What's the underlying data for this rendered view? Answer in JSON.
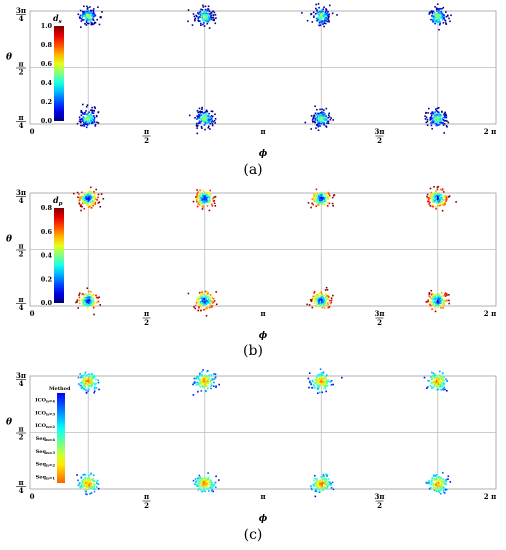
{
  "chart_data": [
    {
      "type": "scatter",
      "panel_label": "(a)",
      "xlabel": "ϕ",
      "ylabel": "θ",
      "x_ticks": [
        {
          "value": 0,
          "label": "0"
        },
        {
          "value": 1.5708,
          "label": "π/2"
        },
        {
          "value": 3.1416,
          "label": "π"
        },
        {
          "value": 4.7124,
          "label": "3π/2"
        },
        {
          "value": 6.2832,
          "label": "2 π"
        }
      ],
      "y_ticks": [
        {
          "value": 0.7854,
          "label": "π/4"
        },
        {
          "value": 1.5708,
          "label": "π/2"
        },
        {
          "value": 2.3562,
          "label": "3π/4"
        }
      ],
      "xlim": [
        0,
        6.2832
      ],
      "ylim": [
        0.7854,
        2.3562
      ],
      "grid": true,
      "colorbar": {
        "title": "d_s",
        "title_base": "d",
        "title_sub": "s",
        "range": [
          0,
          1.0
        ],
        "ticks": [
          "0.0",
          "0.2",
          "0.4",
          "0.6",
          "0.8",
          "1.0"
        ],
        "placement": "top-left inside"
      },
      "clusters": [
        {
          "phi": 0.785,
          "theta": 2.28
        },
        {
          "phi": 2.356,
          "theta": 2.28
        },
        {
          "phi": 3.927,
          "theta": 2.28
        },
        {
          "phi": 5.498,
          "theta": 2.28
        },
        {
          "phi": 0.785,
          "theta": 0.86
        },
        {
          "phi": 2.356,
          "theta": 0.86
        },
        {
          "phi": 3.927,
          "theta": 0.86
        },
        {
          "phi": 5.498,
          "theta": 0.86
        }
      ]
    },
    {
      "type": "scatter",
      "panel_label": "(b)",
      "xlabel": "ϕ",
      "ylabel": "θ",
      "x_ticks": [
        {
          "value": 0,
          "label": "0"
        },
        {
          "value": 1.5708,
          "label": "π/2"
        },
        {
          "value": 3.1416,
          "label": "π"
        },
        {
          "value": 4.7124,
          "label": "3π/2"
        },
        {
          "value": 6.2832,
          "label": "2 π"
        }
      ],
      "y_ticks": [
        {
          "value": 0.7854,
          "label": "π/4"
        },
        {
          "value": 1.5708,
          "label": "π/2"
        },
        {
          "value": 2.3562,
          "label": "3π/4"
        }
      ],
      "xlim": [
        0,
        6.2832
      ],
      "ylim": [
        0.7854,
        2.3562
      ],
      "grid": true,
      "colorbar": {
        "title": "d_p",
        "title_base": "d",
        "title_sub": "p",
        "range": [
          0,
          0.8
        ],
        "ticks": [
          "0.0",
          "0.2",
          "0.4",
          "0.6",
          "0.8"
        ],
        "placement": "top-left inside"
      },
      "clusters": [
        {
          "phi": 0.785,
          "theta": 2.28
        },
        {
          "phi": 2.356,
          "theta": 2.28
        },
        {
          "phi": 3.927,
          "theta": 2.28
        },
        {
          "phi": 5.498,
          "theta": 2.28
        },
        {
          "phi": 0.785,
          "theta": 0.86
        },
        {
          "phi": 2.356,
          "theta": 0.86
        },
        {
          "phi": 3.927,
          "theta": 0.86
        },
        {
          "phi": 5.498,
          "theta": 0.86
        }
      ]
    },
    {
      "type": "scatter",
      "panel_label": "(c)",
      "xlabel": "ϕ",
      "ylabel": "θ",
      "x_ticks": [
        {
          "value": 0,
          "label": "0"
        },
        {
          "value": 1.5708,
          "label": "π/2"
        },
        {
          "value": 3.1416,
          "label": "π"
        },
        {
          "value": 4.7124,
          "label": "3π/2"
        },
        {
          "value": 6.2832,
          "label": "2 π"
        }
      ],
      "y_ticks": [
        {
          "value": 0.7854,
          "label": "π/4"
        },
        {
          "value": 1.5708,
          "label": "π/2"
        },
        {
          "value": 2.3562,
          "label": "3π/4"
        }
      ],
      "xlim": [
        0,
        6.2832
      ],
      "ylim": [
        0.7854,
        2.3562
      ],
      "grid": true,
      "colorbar": {
        "title": "Method",
        "categories": [
          {
            "base": "Seq",
            "sub": "n=1"
          },
          {
            "base": "Seq",
            "sub": "n=2"
          },
          {
            "base": "Seq",
            "sub": "n=3"
          },
          {
            "base": "Seq",
            "sub": "n=4"
          },
          {
            "base": "ICO",
            "sub": "n=2"
          },
          {
            "base": "ICO",
            "sub": "n=3"
          },
          {
            "base": "ICO",
            "sub": "n=4"
          }
        ],
        "placement": "top-left inside"
      },
      "clusters": [
        {
          "phi": 0.785,
          "theta": 2.28
        },
        {
          "phi": 2.356,
          "theta": 2.28
        },
        {
          "phi": 3.927,
          "theta": 2.28
        },
        {
          "phi": 5.498,
          "theta": 2.28
        },
        {
          "phi": 0.785,
          "theta": 0.86
        },
        {
          "phi": 2.356,
          "theta": 0.86
        },
        {
          "phi": 3.927,
          "theta": 0.86
        },
        {
          "phi": 5.498,
          "theta": 0.86
        }
      ]
    }
  ],
  "colors": {
    "grid": "#bdbdbd",
    "frame": "#9e9e9e"
  }
}
